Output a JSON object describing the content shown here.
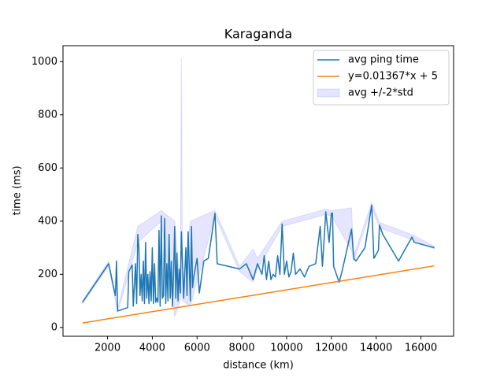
{
  "chart_data": {
    "type": "line",
    "title": "Karaganda",
    "xlabel": "distance (km)",
    "ylabel": "time (ms)",
    "xlim": [
      10,
      17460
    ],
    "ylim": [
      -33,
      1060
    ],
    "xticks": [
      2000,
      4000,
      6000,
      8000,
      10000,
      12000,
      14000,
      16000
    ],
    "yticks": [
      0,
      200,
      400,
      600,
      800,
      1000
    ],
    "legend": "upper right",
    "series": [
      {
        "name": "avg ping time",
        "color": "#1f77b4",
        "x": [
          880,
          2050,
          2350,
          2400,
          2450,
          2900,
          2950,
          3100,
          3150,
          3250,
          3300,
          3350,
          3400,
          3450,
          3500,
          3550,
          3600,
          3650,
          3700,
          3750,
          3800,
          3850,
          3900,
          3950,
          4000,
          4050,
          4100,
          4150,
          4200,
          4250,
          4300,
          4350,
          4400,
          4450,
          4500,
          4550,
          4600,
          4650,
          4700,
          4750,
          4800,
          4850,
          4900,
          4950,
          5000,
          5050,
          5100,
          5150,
          5200,
          5250,
          5300,
          5400,
          5500,
          5550,
          5600,
          5700,
          5750,
          5800,
          5850,
          6000,
          6100,
          6300,
          6500,
          6800,
          6900,
          7900,
          8200,
          8500,
          8700,
          8900,
          9000,
          9100,
          9200,
          9300,
          9400,
          9500,
          9600,
          9700,
          9800,
          9900,
          10000,
          10100,
          10200,
          10300,
          10400,
          10600,
          10800,
          11000,
          11300,
          11500,
          11600,
          11750,
          11900,
          12000,
          12050,
          12100,
          12350,
          12500,
          12900,
          13000,
          13100,
          13500,
          13800,
          13900,
          14100,
          14150,
          14300,
          15000,
          15600,
          15700,
          16600
        ],
        "values": [
          95,
          240,
          120,
          250,
          62,
          75,
          210,
          235,
          80,
          240,
          90,
          350,
          300,
          120,
          200,
          100,
          250,
          90,
          320,
          110,
          200,
          90,
          210,
          100,
          300,
          90,
          240,
          95,
          110,
          95,
          365,
          80,
          420,
          110,
          120,
          410,
          90,
          240,
          100,
          350,
          110,
          250,
          80,
          200,
          380,
          110,
          280,
          100,
          220,
          130,
          360,
          110,
          300,
          120,
          360,
          100,
          380,
          150,
          190,
          260,
          130,
          250,
          260,
          430,
          240,
          220,
          240,
          180,
          240,
          200,
          270,
          180,
          250,
          180,
          200,
          190,
          270,
          200,
          390,
          200,
          250,
          190,
          210,
          280,
          200,
          220,
          190,
          230,
          240,
          380,
          230,
          435,
          320,
          430,
          430,
          230,
          170,
          220,
          370,
          260,
          250,
          300,
          460,
          260,
          290,
          385,
          350,
          250,
          340,
          320,
          300
        ]
      },
      {
        "name": "y=0.01367*x + 5",
        "color": "#ff7f0e",
        "x": [
          880,
          16600
        ],
        "values": [
          17.03,
          231.92
        ]
      }
    ],
    "band": {
      "name": "avg +/-2*std",
      "color": "#0000ff",
      "x": [
        880,
        2050,
        2450,
        3350,
        4400,
        5000,
        5250,
        5300,
        5350,
        5700,
        6800,
        7900,
        8500,
        8700,
        9800,
        11750,
        12000,
        12900,
        13000,
        13800,
        14150,
        15600,
        16600
      ],
      "upper": [
        100,
        250,
        70,
        380,
        440,
        400,
        150,
        1015,
        150,
        400,
        440,
        230,
        295,
        260,
        400,
        445,
        440,
        450,
        270,
        470,
        395,
        350,
        305
      ],
      "lower": [
        90,
        230,
        55,
        320,
        400,
        40,
        100,
        150,
        100,
        80,
        420,
        210,
        170,
        220,
        380,
        425,
        420,
        290,
        250,
        450,
        375,
        330,
        295
      ]
    }
  }
}
